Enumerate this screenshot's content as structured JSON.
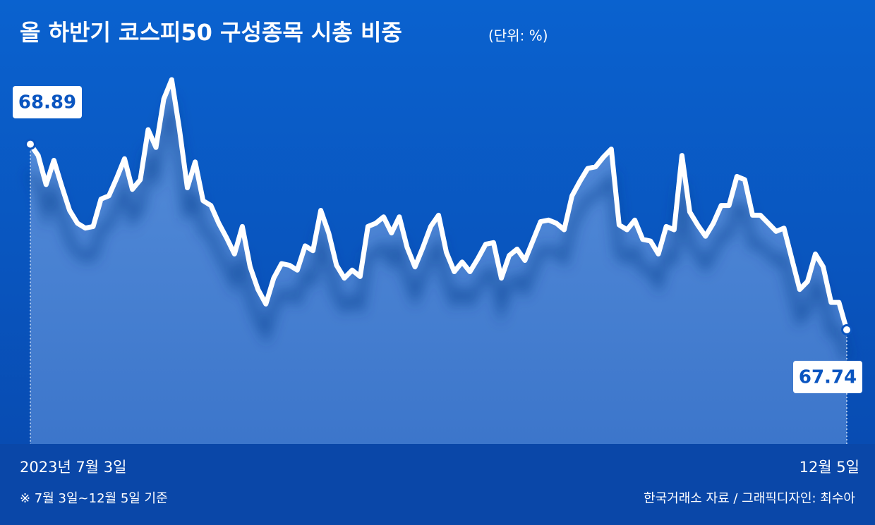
{
  "chart_data": {
    "type": "area",
    "title": "올 하반기 코스피50 구성종목 시총 비중",
    "unit": "(단위: %)",
    "note": "※ 7월 3일~12월 5일 기준",
    "source": "한국거래소 자료 / 그래픽디자인: 최수아",
    "color": "#ffffff",
    "categories": [
      "2023년 7월 3일",
      null,
      null,
      null,
      null,
      null,
      null,
      null,
      null,
      null,
      null,
      null,
      null,
      null,
      null,
      null,
      null,
      null,
      null,
      null,
      null,
      null,
      null,
      null,
      null,
      null,
      null,
      null,
      null,
      null,
      null,
      null,
      null,
      null,
      null,
      null,
      null,
      null,
      null,
      null,
      null,
      null,
      null,
      null,
      null,
      null,
      null,
      null,
      null,
      null,
      null,
      null,
      null,
      null,
      null,
      null,
      null,
      null,
      null,
      null,
      null,
      null,
      null,
      null,
      null,
      null,
      null,
      null,
      null,
      null,
      null,
      null,
      null,
      null,
      null,
      null,
      null,
      null,
      null,
      null,
      null,
      null,
      null,
      null,
      null,
      null,
      null,
      null,
      null,
      null,
      null,
      null,
      null,
      null,
      null,
      null,
      null,
      null,
      null,
      null,
      null,
      null,
      null,
      null,
      "12월 5일"
    ],
    "values": [
      68.89,
      68.82,
      68.64,
      68.79,
      68.63,
      68.48,
      68.4,
      68.37,
      68.38,
      68.55,
      68.57,
      68.68,
      68.8,
      68.61,
      68.67,
      68.98,
      68.87,
      69.17,
      69.29,
      68.98,
      68.62,
      68.78,
      68.54,
      68.51,
      68.4,
      68.31,
      68.21,
      68.38,
      68.13,
      67.99,
      67.9,
      68.06,
      68.15,
      68.14,
      68.11,
      68.26,
      68.23,
      68.48,
      68.34,
      68.14,
      68.06,
      68.11,
      68.07,
      68.38,
      68.4,
      68.44,
      68.34,
      68.44,
      68.25,
      68.13,
      68.25,
      68.38,
      68.45,
      68.22,
      68.1,
      68.16,
      68.1,
      68.18,
      68.27,
      68.28,
      68.06,
      68.2,
      68.24,
      68.17,
      68.29,
      68.41,
      68.42,
      68.4,
      68.36,
      68.57,
      68.66,
      68.74,
      68.75,
      68.81,
      68.86,
      68.39,
      68.36,
      68.42,
      68.3,
      68.29,
      68.21,
      68.38,
      68.36,
      68.82,
      68.47,
      68.39,
      68.32,
      68.4,
      68.51,
      68.51,
      68.69,
      68.67,
      68.45,
      68.45,
      68.4,
      68.35,
      68.37,
      68.18,
      67.99,
      68.04,
      68.21,
      68.13,
      67.91,
      67.91,
      67.74
    ]
  }
}
